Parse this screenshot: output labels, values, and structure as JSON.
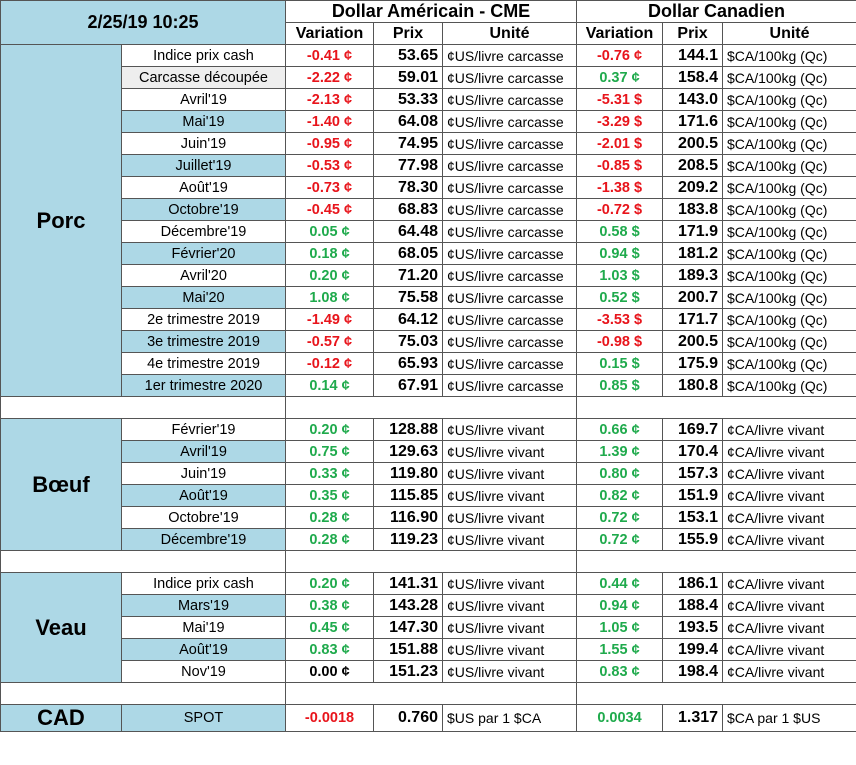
{
  "header": {
    "datetime": "2/25/19 10:25",
    "usd_title": "Dollar Américain - CME",
    "cad_title": "Dollar Canadien",
    "col_variation": "Variation",
    "col_prix": "Prix",
    "col_unite": "Unité"
  },
  "sections": {
    "porc": {
      "label": "Porc",
      "rows": [
        {
          "label": "Indice prix cash",
          "usd_var": "-0.41 ¢",
          "usd_sign": "neg",
          "usd_price": "53.65",
          "usd_unit": "¢US/livre carcasse",
          "cad_var": "-0.76 ¢",
          "cad_sign": "neg",
          "cad_price": "144.1",
          "cad_unit": "$CA/100kg (Qc)"
        },
        {
          "label": "Carcasse découpée",
          "usd_var": "-2.22 ¢",
          "usd_sign": "neg",
          "usd_price": "59.01",
          "usd_unit": "¢US/livre carcasse",
          "cad_var": "0.37 ¢",
          "cad_sign": "pos",
          "cad_price": "158.4",
          "cad_unit": "$CA/100kg (Qc)"
        },
        {
          "label": "Avril'19",
          "usd_var": "-2.13 ¢",
          "usd_sign": "neg",
          "usd_price": "53.33",
          "usd_unit": "¢US/livre carcasse",
          "cad_var": "-5.31 $",
          "cad_sign": "neg",
          "cad_price": "143.0",
          "cad_unit": "$CA/100kg (Qc)"
        },
        {
          "label": "Mai'19",
          "usd_var": "-1.40 ¢",
          "usd_sign": "neg",
          "usd_price": "64.08",
          "usd_unit": "¢US/livre carcasse",
          "cad_var": "-3.29 $",
          "cad_sign": "neg",
          "cad_price": "171.6",
          "cad_unit": "$CA/100kg (Qc)"
        },
        {
          "label": "Juin'19",
          "usd_var": "-0.95 ¢",
          "usd_sign": "neg",
          "usd_price": "74.95",
          "usd_unit": "¢US/livre carcasse",
          "cad_var": "-2.01 $",
          "cad_sign": "neg",
          "cad_price": "200.5",
          "cad_unit": "$CA/100kg (Qc)"
        },
        {
          "label": "Juillet'19",
          "usd_var": "-0.53 ¢",
          "usd_sign": "neg",
          "usd_price": "77.98",
          "usd_unit": "¢US/livre carcasse",
          "cad_var": "-0.85 $",
          "cad_sign": "neg",
          "cad_price": "208.5",
          "cad_unit": "$CA/100kg (Qc)"
        },
        {
          "label": "Août'19",
          "usd_var": "-0.73 ¢",
          "usd_sign": "neg",
          "usd_price": "78.30",
          "usd_unit": "¢US/livre carcasse",
          "cad_var": "-1.38 $",
          "cad_sign": "neg",
          "cad_price": "209.2",
          "cad_unit": "$CA/100kg (Qc)"
        },
        {
          "label": "Octobre'19",
          "usd_var": "-0.45 ¢",
          "usd_sign": "neg",
          "usd_price": "68.83",
          "usd_unit": "¢US/livre carcasse",
          "cad_var": "-0.72 $",
          "cad_sign": "neg",
          "cad_price": "183.8",
          "cad_unit": "$CA/100kg (Qc)"
        },
        {
          "label": "Décembre'19",
          "usd_var": "0.05 ¢",
          "usd_sign": "pos",
          "usd_price": "64.48",
          "usd_unit": "¢US/livre carcasse",
          "cad_var": "0.58 $",
          "cad_sign": "pos",
          "cad_price": "171.9",
          "cad_unit": "$CA/100kg (Qc)"
        },
        {
          "label": "Février'20",
          "usd_var": "0.18 ¢",
          "usd_sign": "pos",
          "usd_price": "68.05",
          "usd_unit": "¢US/livre carcasse",
          "cad_var": "0.94 $",
          "cad_sign": "pos",
          "cad_price": "181.2",
          "cad_unit": "$CA/100kg (Qc)"
        },
        {
          "label": "Avril'20",
          "usd_var": "0.20 ¢",
          "usd_sign": "pos",
          "usd_price": "71.20",
          "usd_unit": "¢US/livre carcasse",
          "cad_var": "1.03 $",
          "cad_sign": "pos",
          "cad_price": "189.3",
          "cad_unit": "$CA/100kg (Qc)"
        },
        {
          "label": "Mai'20",
          "usd_var": "1.08 ¢",
          "usd_sign": "pos",
          "usd_price": "75.58",
          "usd_unit": "¢US/livre carcasse",
          "cad_var": "0.52 $",
          "cad_sign": "pos",
          "cad_price": "200.7",
          "cad_unit": "$CA/100kg (Qc)"
        },
        {
          "label": "2e trimestre 2019",
          "usd_var": "-1.49 ¢",
          "usd_sign": "neg",
          "usd_price": "64.12",
          "usd_unit": "¢US/livre carcasse",
          "cad_var": "-3.53 $",
          "cad_sign": "neg",
          "cad_price": "171.7",
          "cad_unit": "$CA/100kg (Qc)"
        },
        {
          "label": "3e trimestre 2019",
          "usd_var": "-0.57 ¢",
          "usd_sign": "neg",
          "usd_price": "75.03",
          "usd_unit": "¢US/livre carcasse",
          "cad_var": "-0.98 $",
          "cad_sign": "neg",
          "cad_price": "200.5",
          "cad_unit": "$CA/100kg (Qc)"
        },
        {
          "label": "4e trimestre 2019",
          "usd_var": "-0.12 ¢",
          "usd_sign": "neg",
          "usd_price": "65.93",
          "usd_unit": "¢US/livre carcasse",
          "cad_var": "0.15 $",
          "cad_sign": "pos",
          "cad_price": "175.9",
          "cad_unit": "$CA/100kg (Qc)"
        },
        {
          "label": "1er trimestre 2020",
          "usd_var": "0.14 ¢",
          "usd_sign": "pos",
          "usd_price": "67.91",
          "usd_unit": "¢US/livre carcasse",
          "cad_var": "0.85 $",
          "cad_sign": "pos",
          "cad_price": "180.8",
          "cad_unit": "$CA/100kg (Qc)"
        }
      ]
    },
    "boeuf": {
      "label": "Bœuf",
      "rows": [
        {
          "label": "Février'19",
          "usd_var": "0.20 ¢",
          "usd_sign": "pos",
          "usd_price": "128.88",
          "usd_unit": "¢US/livre vivant",
          "cad_var": "0.66 ¢",
          "cad_sign": "pos",
          "cad_price": "169.7",
          "cad_unit": "¢CA/livre vivant"
        },
        {
          "label": "Avril'19",
          "usd_var": "0.75 ¢",
          "usd_sign": "pos",
          "usd_price": "129.63",
          "usd_unit": "¢US/livre vivant",
          "cad_var": "1.39 ¢",
          "cad_sign": "pos",
          "cad_price": "170.4",
          "cad_unit": "¢CA/livre vivant"
        },
        {
          "label": "Juin'19",
          "usd_var": "0.33 ¢",
          "usd_sign": "pos",
          "usd_price": "119.80",
          "usd_unit": "¢US/livre vivant",
          "cad_var": "0.80 ¢",
          "cad_sign": "pos",
          "cad_price": "157.3",
          "cad_unit": "¢CA/livre vivant"
        },
        {
          "label": "Août'19",
          "usd_var": "0.35 ¢",
          "usd_sign": "pos",
          "usd_price": "115.85",
          "usd_unit": "¢US/livre vivant",
          "cad_var": "0.82 ¢",
          "cad_sign": "pos",
          "cad_price": "151.9",
          "cad_unit": "¢CA/livre vivant"
        },
        {
          "label": "Octobre'19",
          "usd_var": "0.28 ¢",
          "usd_sign": "pos",
          "usd_price": "116.90",
          "usd_unit": "¢US/livre vivant",
          "cad_var": "0.72 ¢",
          "cad_sign": "pos",
          "cad_price": "153.1",
          "cad_unit": "¢CA/livre vivant"
        },
        {
          "label": "Décembre'19",
          "usd_var": "0.28 ¢",
          "usd_sign": "pos",
          "usd_price": "119.23",
          "usd_unit": "¢US/livre vivant",
          "cad_var": "0.72 ¢",
          "cad_sign": "pos",
          "cad_price": "155.9",
          "cad_unit": "¢CA/livre vivant"
        }
      ]
    },
    "veau": {
      "label": "Veau",
      "rows": [
        {
          "label": "Indice prix cash",
          "usd_var": "0.20 ¢",
          "usd_sign": "pos",
          "usd_price": "141.31",
          "usd_unit": "¢US/livre vivant",
          "cad_var": "0.44 ¢",
          "cad_sign": "pos",
          "cad_price": "186.1",
          "cad_unit": "¢CA/livre vivant"
        },
        {
          "label": "Mars'19",
          "usd_var": "0.38 ¢",
          "usd_sign": "pos",
          "usd_price": "143.28",
          "usd_unit": "¢US/livre vivant",
          "cad_var": "0.94 ¢",
          "cad_sign": "pos",
          "cad_price": "188.4",
          "cad_unit": "¢CA/livre vivant"
        },
        {
          "label": "Mai'19",
          "usd_var": "0.45 ¢",
          "usd_sign": "pos",
          "usd_price": "147.30",
          "usd_unit": "¢US/livre vivant",
          "cad_var": "1.05 ¢",
          "cad_sign": "pos",
          "cad_price": "193.5",
          "cad_unit": "¢CA/livre vivant"
        },
        {
          "label": "Août'19",
          "usd_var": "0.83 ¢",
          "usd_sign": "pos",
          "usd_price": "151.88",
          "usd_unit": "¢US/livre vivant",
          "cad_var": "1.55 ¢",
          "cad_sign": "pos",
          "cad_price": "199.4",
          "cad_unit": "¢CA/livre vivant"
        },
        {
          "label": "Nov'19",
          "usd_var": "0.00 ¢",
          "usd_sign": "zero",
          "usd_price": "151.23",
          "usd_unit": "¢US/livre vivant",
          "cad_var": "0.83 ¢",
          "cad_sign": "pos",
          "cad_price": "198.4",
          "cad_unit": "¢CA/livre vivant"
        }
      ]
    },
    "cad": {
      "label": "CAD",
      "row": {
        "label": "SPOT",
        "usd_var": "-0.0018",
        "usd_sign": "neg",
        "usd_price": "0.760",
        "usd_unit": "$US par 1 $CA",
        "cad_var": "0.0034",
        "cad_sign": "pos",
        "cad_price": "1.317",
        "cad_unit": "$CA par 1 $US"
      }
    }
  }
}
